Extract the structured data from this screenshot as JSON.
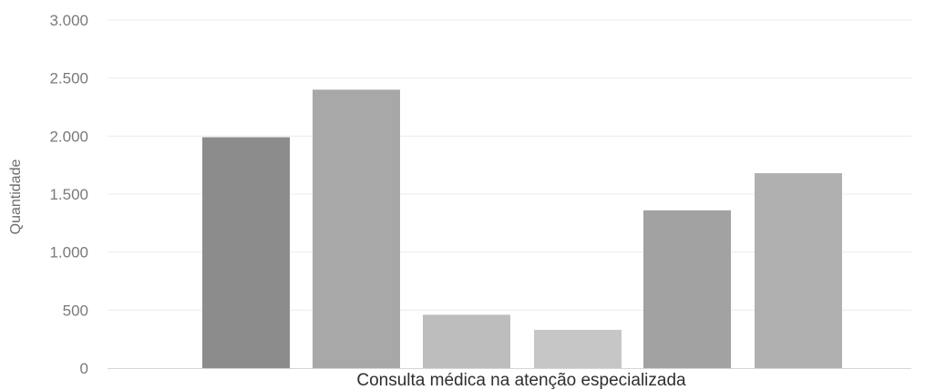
{
  "chart_data": {
    "type": "bar",
    "categories": [
      "Consulta médica na atenção especializada"
    ],
    "series": [
      {
        "values": [
          1990
        ],
        "color": "#8c8c8c"
      },
      {
        "values": [
          2400
        ],
        "color": "#a8a8a8"
      },
      {
        "values": [
          460
        ],
        "color": "#bdbdbd"
      },
      {
        "values": [
          330
        ],
        "color": "#c6c6c6"
      },
      {
        "values": [
          1360
        ],
        "color": "#a2a2a2"
      },
      {
        "values": [
          1680
        ],
        "color": "#b0b0b0"
      }
    ],
    "title": "",
    "xlabel": "",
    "ylabel": "Quantidade",
    "ylim": [
      0,
      3000
    ],
    "yticks": [
      0,
      500,
      1000,
      1500,
      2000,
      2500,
      3000
    ],
    "ytick_labels": [
      "0",
      "500",
      "1.000",
      "1.500",
      "2.000",
      "2.500",
      "3.000"
    ],
    "grid": true,
    "legend": "none"
  }
}
